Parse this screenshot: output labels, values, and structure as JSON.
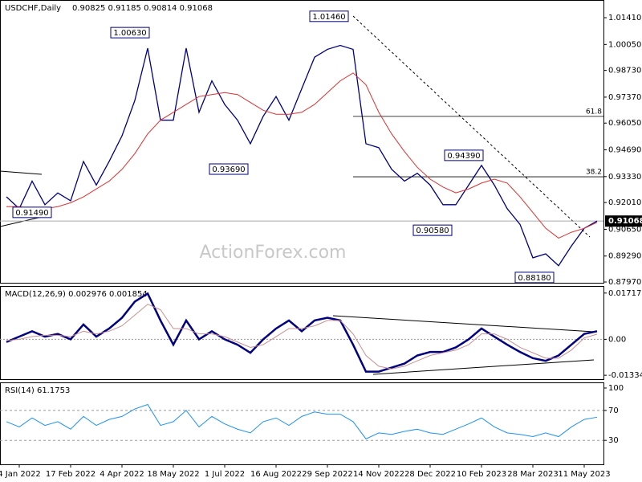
{
  "chart_data": [
    {
      "type": "line",
      "title": "USDCHF,Daily",
      "subtitle": "0.90825 0.91185 0.90814 0.91068",
      "ylim": [
        0.8793,
        1.0231
      ],
      "yticks": [
        {
          "value": 1.0141,
          "label": "1.01410"
        },
        {
          "value": 1.0005,
          "label": "1.00050"
        },
        {
          "value": 0.9873,
          "label": "0.98730"
        },
        {
          "value": 0.9737,
          "label": "0.97370"
        },
        {
          "value": 0.9605,
          "label": "0.96050"
        },
        {
          "value": 0.9469,
          "label": "0.94690"
        },
        {
          "value": 0.9333,
          "label": "0.93330"
        },
        {
          "value": 0.9201,
          "label": "0.92010"
        },
        {
          "value": 0.9065,
          "label": "0.90650"
        },
        {
          "value": 0.8929,
          "label": "0.89290"
        },
        {
          "value": 0.8797,
          "label": "0.87970"
        }
      ],
      "series": [
        {
          "color": "#000080",
          "values": [
            0.923,
            0.917,
            0.931,
            0.919,
            0.925,
            0.921,
            0.941,
            0.929,
            0.941,
            0.954,
            0.972,
            0.9986,
            0.962,
            0.962,
            0.9986,
            0.966,
            0.982,
            0.97,
            0.962,
            0.95,
            0.964,
            0.974,
            0.962,
            0.978,
            0.994,
            0.998,
            1.0,
            0.998,
            0.95,
            0.948,
            0.937,
            0.931,
            0.935,
            0.929,
            0.919,
            0.919,
            0.929,
            0.939,
            0.929,
            0.917,
            0.909,
            0.892,
            0.894,
            0.888,
            0.898,
            0.907,
            0.9107
          ]
        },
        {
          "color": "#e03030",
          "values": [
            0.918,
            0.918,
            0.917,
            0.917,
            0.918,
            0.92,
            0.923,
            0.927,
            0.931,
            0.937,
            0.945,
            0.955,
            0.962,
            0.966,
            0.97,
            0.974,
            0.975,
            0.976,
            0.975,
            0.971,
            0.967,
            0.965,
            0.965,
            0.966,
            0.97,
            0.976,
            0.982,
            0.986,
            0.98,
            0.966,
            0.955,
            0.946,
            0.938,
            0.932,
            0.928,
            0.925,
            0.927,
            0.93,
            0.932,
            0.93,
            0.923,
            0.915,
            0.907,
            0.902,
            0.905,
            0.907,
            0.91
          ]
        }
      ],
      "last_price": {
        "value": 0.91068,
        "label": "0.91068"
      },
      "levels": [
        {
          "value": 0.9639,
          "label": "61.8"
        },
        {
          "value": 0.9332,
          "label": "38.2"
        }
      ],
      "annotations": [
        {
          "value": 1.0063,
          "label": "1.00630"
        },
        {
          "value": 1.0146,
          "label": "1.01460"
        },
        {
          "value": 0.9369,
          "label": "0.93690"
        },
        {
          "value": 0.9058,
          "label": "0.90580"
        },
        {
          "value": 0.9439,
          "label": "0.94390"
        },
        {
          "value": 0.8818,
          "label": "0.88180"
        },
        {
          "value": 0.9149,
          "label": "0.91490"
        }
      ],
      "watermark": "ActionForex.com"
    },
    {
      "type": "line",
      "title": "MACD(12,26,9) 0.002976 0.001854",
      "ylim": [
        -0.0148,
        0.0198
      ],
      "yticks": [
        0.017176,
        {
          "value": 0,
          "label": "0.00"
        },
        -0.013346
      ],
      "series": [
        {
          "color": "#000080",
          "values": [
            -0.001,
            0.001,
            0.003,
            0.001,
            0.002,
            0,
            0.0055,
            0.001,
            0.004,
            0.008,
            0.014,
            0.017,
            0.007,
            -0.002,
            0.007,
            0,
            0.003,
            0,
            -0.002,
            -0.005,
            0,
            0.004,
            0.007,
            0.003,
            0.007,
            0.008,
            0.007,
            -0.002,
            -0.012,
            -0.012,
            -0.0105,
            -0.009,
            -0.006,
            -0.0047,
            -0.0047,
            -0.003,
            0,
            0.004,
            0.001,
            -0.002,
            -0.0047,
            -0.007,
            -0.008,
            -0.006,
            -0.002,
            0.002,
            0.003
          ]
        },
        {
          "color": "#c89090",
          "values": [
            -0.0005,
            0,
            0.001,
            0.0015,
            0.0015,
            0.001,
            0.003,
            0.002,
            0.003,
            0.005,
            0.009,
            0.013,
            0.011,
            0.004,
            0.004,
            0.002,
            0.002,
            0.001,
            -0.001,
            -0.003,
            -0.002,
            0.001,
            0.004,
            0.004,
            0.005,
            0.007,
            0.007,
            0.002,
            -0.006,
            -0.01,
            -0.011,
            -0.01,
            -0.008,
            -0.006,
            -0.005,
            -0.004,
            -0.002,
            0.002,
            0.002,
            0,
            -0.003,
            -0.005,
            -0.007,
            -0.007,
            -0.004,
            0.0005,
            0.0019
          ]
        }
      ]
    },
    {
      "type": "line",
      "title": "RSI(14) 61.1753",
      "ylim": [
        -2,
        107.5
      ],
      "yticks": [
        100,
        70,
        30
      ],
      "categories": [
        null,
        "4 Jan 2022",
        null,
        null,
        null,
        "17 Feb 2022",
        null,
        null,
        null,
        "4 Apr 2022",
        null,
        null,
        null,
        "18 May 2022",
        null,
        null,
        null,
        "1 Jul 2022",
        null,
        null,
        null,
        "16 Aug 2022",
        null,
        null,
        null,
        "29 Sep 2022",
        null,
        null,
        null,
        "14 Nov 2022",
        null,
        null,
        null,
        "28 Dec 2022",
        null,
        null,
        null,
        "10 Feb 2023",
        null,
        null,
        null,
        "28 Mar 2023",
        null,
        null,
        null,
        "11 May 2023",
        null
      ],
      "series": [
        {
          "color": "#1e90ff",
          "values": [
            55,
            48,
            60,
            50,
            55,
            45,
            62,
            50,
            58,
            62,
            72,
            78,
            50,
            55,
            70,
            48,
            62,
            52,
            45,
            40,
            55,
            60,
            50,
            62,
            68,
            65,
            65,
            55,
            32,
            40,
            38,
            42,
            45,
            40,
            38,
            45,
            52,
            60,
            48,
            40,
            38,
            35,
            40,
            35,
            48,
            58,
            61
          ]
        }
      ]
    }
  ]
}
